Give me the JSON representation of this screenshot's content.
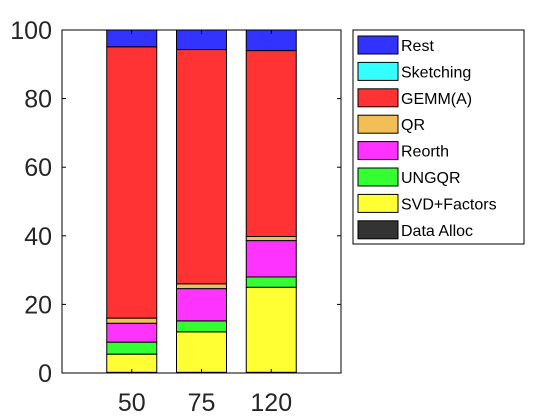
{
  "chart_data": {
    "type": "bar",
    "stacked": true,
    "categories": [
      "50",
      "75",
      "120"
    ],
    "ylim": [
      0,
      100
    ],
    "yticks": [
      "0",
      "20",
      "40",
      "60",
      "80",
      "100"
    ],
    "grid": false,
    "legend_position": "right-outside",
    "legend_order": [
      "Rest",
      "Sketching",
      "GEMM(A)",
      "QR",
      "Reorth",
      "UNGQR",
      "SVD+Factors",
      "Data Alloc"
    ],
    "series": [
      {
        "name": "Data Alloc",
        "color": "#333333",
        "values": [
          0.2,
          0.2,
          0.2
        ]
      },
      {
        "name": "SVD+Factors",
        "color": "#ffff33",
        "values": [
          5.3,
          11.8,
          24.8
        ]
      },
      {
        "name": "UNGQR",
        "color": "#33ff33",
        "values": [
          3.5,
          3.2,
          3.0
        ]
      },
      {
        "name": "Reorth",
        "color": "#ff33ff",
        "values": [
          5.5,
          9.4,
          10.6
        ]
      },
      {
        "name": "QR",
        "color": "#f2bf57",
        "values": [
          1.5,
          1.4,
          1.2
        ]
      },
      {
        "name": "GEMM(A)",
        "color": "#ff3333",
        "values": [
          79.1,
          68.3,
          54.2
        ]
      },
      {
        "name": "Sketching",
        "color": "#33ffff",
        "values": [
          0.0,
          0.0,
          0.0
        ]
      },
      {
        "name": "Rest",
        "color": "#3333ff",
        "values": [
          4.9,
          5.7,
          6.0
        ]
      }
    ]
  }
}
